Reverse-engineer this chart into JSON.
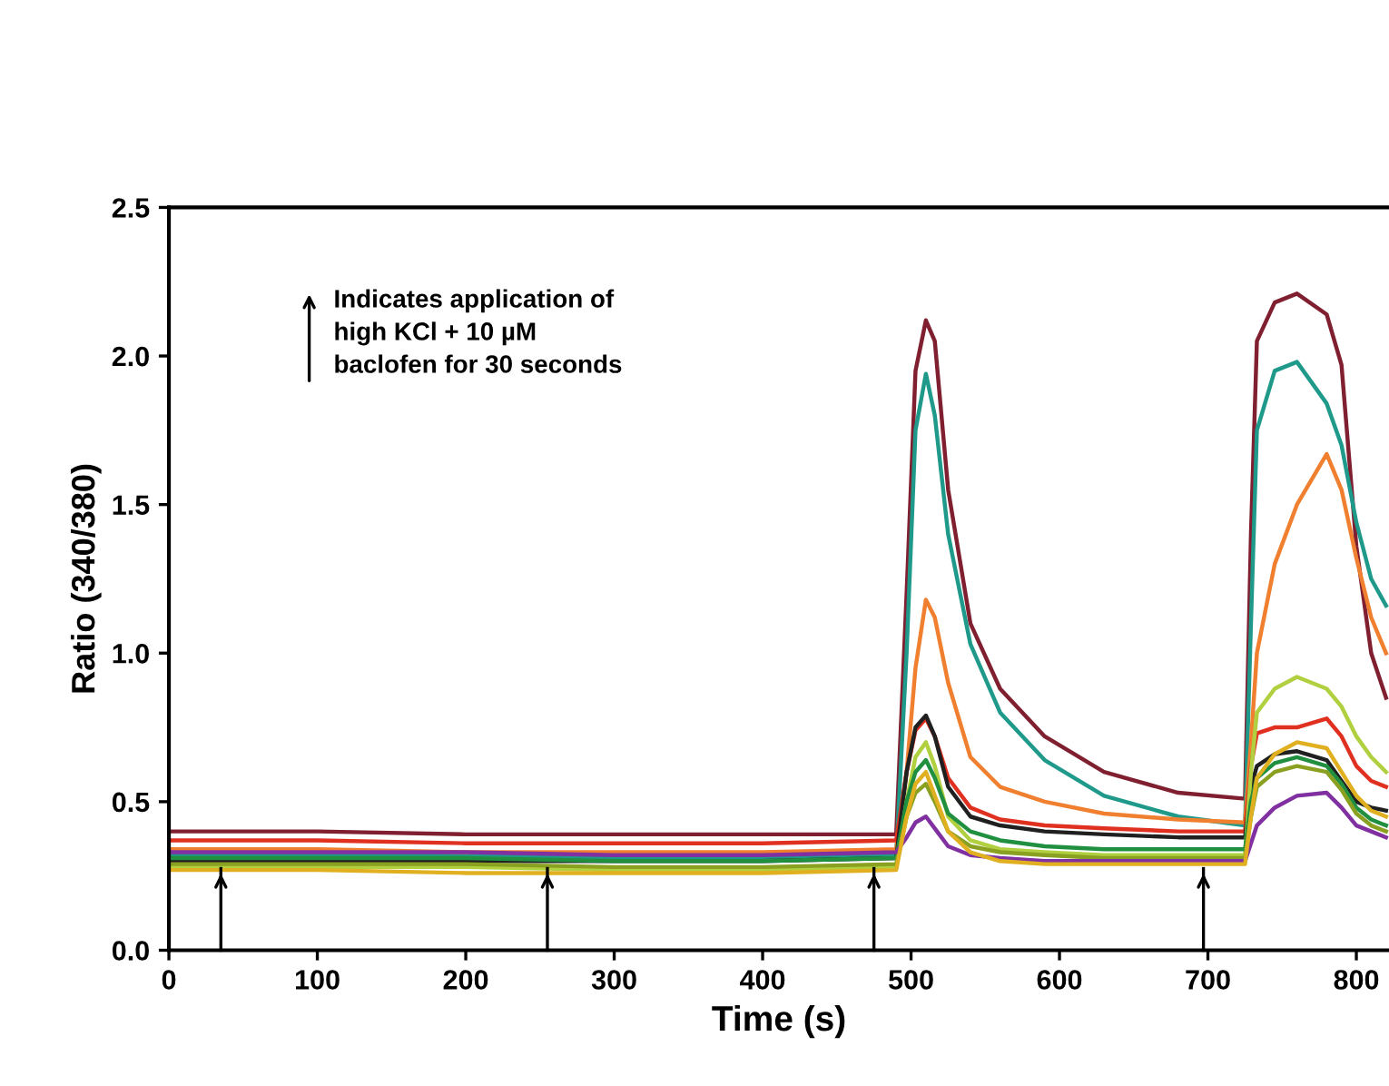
{
  "chart_data": {
    "type": "line",
    "xlabel": "Time (s)",
    "ylabel": "Ratio (340/380)",
    "xlim": [
      0,
      822
    ],
    "xticks": [
      0,
      100,
      200,
      300,
      400,
      500,
      600,
      700,
      800
    ],
    "ylim": [
      0,
      2.5
    ],
    "yticks": [
      {
        "value": 0,
        "label": "0.0"
      },
      {
        "value": 0.5,
        "label": "0.5"
      },
      {
        "value": 1,
        "label": "1.0"
      },
      {
        "value": 1.5,
        "label": "1.5"
      },
      {
        "value": 2,
        "label": "2.0"
      },
      {
        "value": 2.5,
        "label": "2.5"
      }
    ],
    "grid": false,
    "legend": false,
    "marker": "none",
    "line_style": "solid",
    "annotations": [
      "Indicates application of\nhigh KCl + 10 µM\nbaclofen for 30 seconds"
    ],
    "ref_lines": [
      {
        "axis": "x",
        "value": 35,
        "label": null,
        "color": "#000000"
      },
      {
        "axis": "x",
        "value": 255,
        "label": null,
        "color": "#000000"
      },
      {
        "axis": "x",
        "value": 475,
        "label": null,
        "color": "#000000"
      },
      {
        "axis": "x",
        "value": 697,
        "label": null,
        "color": "#000000"
      }
    ],
    "x": [
      0,
      100,
      200,
      300,
      400,
      490,
      497,
      503,
      510,
      516,
      525,
      540,
      560,
      590,
      630,
      680,
      725,
      729,
      733,
      745,
      760,
      780,
      790,
      800,
      810,
      820
    ],
    "series": [
      {
        "color": "#7f1f2f",
        "values": [
          0.4,
          0.4,
          0.39,
          0.39,
          0.39,
          0.39,
          1.2,
          1.95,
          2.12,
          2.05,
          1.55,
          1.1,
          0.88,
          0.72,
          0.6,
          0.53,
          0.51,
          1.4,
          2.05,
          2.18,
          2.21,
          2.14,
          1.97,
          1.36,
          1.0,
          0.85
        ]
      },
      {
        "color": "#1f9a8a",
        "values": [
          0.32,
          0.32,
          0.32,
          0.31,
          0.31,
          0.32,
          1.0,
          1.75,
          1.94,
          1.8,
          1.4,
          1.03,
          0.8,
          0.64,
          0.52,
          0.45,
          0.42,
          1.1,
          1.75,
          1.95,
          1.98,
          1.84,
          1.7,
          1.44,
          1.25,
          1.16
        ]
      },
      {
        "color": "#f08030",
        "values": [
          0.34,
          0.34,
          0.33,
          0.33,
          0.33,
          0.34,
          0.6,
          0.95,
          1.18,
          1.12,
          0.9,
          0.65,
          0.55,
          0.5,
          0.46,
          0.44,
          0.43,
          0.7,
          1.0,
          1.3,
          1.5,
          1.67,
          1.55,
          1.32,
          1.12,
          1.0
        ]
      },
      {
        "color": "#e03020",
        "values": [
          0.37,
          0.37,
          0.36,
          0.36,
          0.36,
          0.37,
          0.6,
          0.74,
          0.78,
          0.72,
          0.58,
          0.48,
          0.44,
          0.42,
          0.41,
          0.4,
          0.4,
          0.62,
          0.73,
          0.75,
          0.75,
          0.78,
          0.72,
          0.62,
          0.57,
          0.55
        ]
      },
      {
        "color": "#202020",
        "values": [
          0.3,
          0.3,
          0.3,
          0.3,
          0.3,
          0.31,
          0.6,
          0.75,
          0.79,
          0.72,
          0.55,
          0.45,
          0.42,
          0.4,
          0.39,
          0.38,
          0.38,
          0.55,
          0.62,
          0.66,
          0.67,
          0.64,
          0.57,
          0.5,
          0.48,
          0.47
        ]
      },
      {
        "color": "#b0d040",
        "values": [
          0.28,
          0.28,
          0.28,
          0.27,
          0.27,
          0.28,
          0.5,
          0.65,
          0.7,
          0.62,
          0.45,
          0.37,
          0.34,
          0.33,
          0.32,
          0.32,
          0.32,
          0.6,
          0.8,
          0.88,
          0.92,
          0.88,
          0.82,
          0.72,
          0.65,
          0.6
        ]
      },
      {
        "color": "#209040",
        "values": [
          0.31,
          0.31,
          0.31,
          0.3,
          0.3,
          0.31,
          0.5,
          0.6,
          0.64,
          0.58,
          0.46,
          0.4,
          0.37,
          0.35,
          0.34,
          0.34,
          0.34,
          0.5,
          0.58,
          0.63,
          0.65,
          0.62,
          0.56,
          0.48,
          0.44,
          0.42
        ]
      },
      {
        "color": "#8aa020",
        "values": [
          0.29,
          0.29,
          0.29,
          0.28,
          0.28,
          0.29,
          0.45,
          0.53,
          0.56,
          0.5,
          0.4,
          0.35,
          0.33,
          0.32,
          0.31,
          0.31,
          0.31,
          0.45,
          0.55,
          0.6,
          0.62,
          0.6,
          0.54,
          0.46,
          0.42,
          0.4
        ]
      },
      {
        "color": "#8030a0",
        "values": [
          0.33,
          0.33,
          0.33,
          0.32,
          0.32,
          0.33,
          0.38,
          0.43,
          0.45,
          0.41,
          0.35,
          0.32,
          0.31,
          0.3,
          0.3,
          0.3,
          0.3,
          0.36,
          0.42,
          0.48,
          0.52,
          0.53,
          0.48,
          0.42,
          0.4,
          0.38
        ]
      },
      {
        "color": "#e0b020",
        "values": [
          0.27,
          0.27,
          0.26,
          0.26,
          0.26,
          0.27,
          0.45,
          0.56,
          0.6,
          0.52,
          0.4,
          0.33,
          0.3,
          0.29,
          0.29,
          0.29,
          0.29,
          0.45,
          0.58,
          0.66,
          0.7,
          0.68,
          0.6,
          0.52,
          0.47,
          0.45
        ]
      }
    ]
  }
}
